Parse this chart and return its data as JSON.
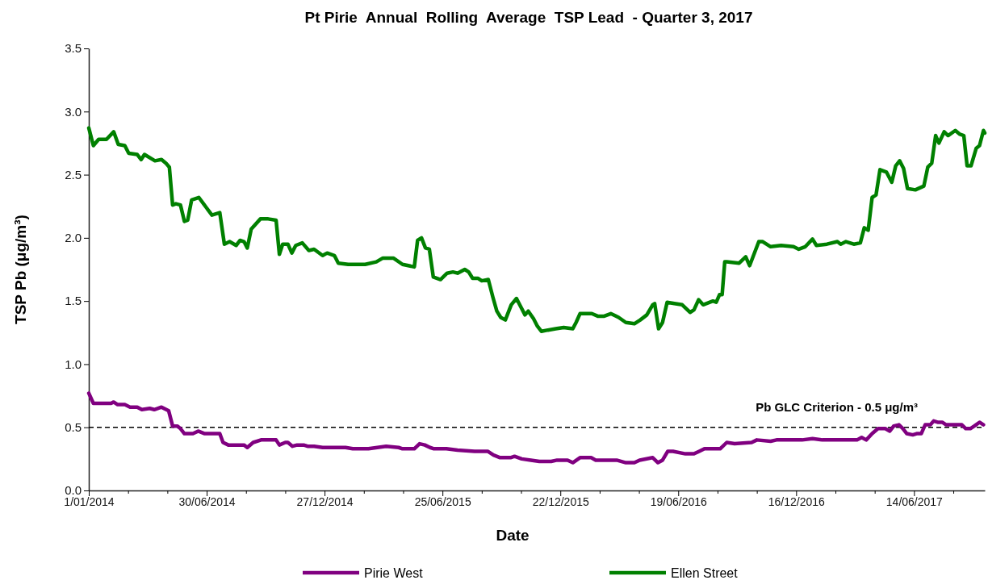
{
  "chart_data": {
    "type": "line",
    "title": "Pt Pirie  Annual  Rolling  Average  TSP Lead  - Quarter 3, 2017",
    "xlabel": "Date",
    "ylabel": "TSP Pb (μg/m³)",
    "xlim": [
      "2014-01-01",
      "2017-09-30"
    ],
    "xticks": [
      {
        "value": "2014-01-01",
        "label": "1/01/2014"
      },
      {
        "value": "2014-03-02",
        "label": null
      },
      {
        "value": "2014-05-01",
        "label": null
      },
      {
        "value": "2014-06-30",
        "label": "30/06/2014"
      },
      {
        "value": "2014-08-29",
        "label": null
      },
      {
        "value": "2014-10-28",
        "label": null
      },
      {
        "value": "2014-12-27",
        "label": "27/12/2014"
      },
      {
        "value": "2015-02-25",
        "label": null
      },
      {
        "value": "2015-04-26",
        "label": null
      },
      {
        "value": "2015-06-25",
        "label": "25/06/2015"
      },
      {
        "value": "2015-08-24",
        "label": null
      },
      {
        "value": "2015-10-23",
        "label": null
      },
      {
        "value": "2015-12-22",
        "label": "22/12/2015"
      },
      {
        "value": "2016-02-20",
        "label": null
      },
      {
        "value": "2016-04-20",
        "label": null
      },
      {
        "value": "2016-06-19",
        "label": "19/06/2016"
      },
      {
        "value": "2016-08-18",
        "label": null
      },
      {
        "value": "2016-10-17",
        "label": null
      },
      {
        "value": "2016-12-16",
        "label": "16/12/2016"
      },
      {
        "value": "2017-02-14",
        "label": null
      },
      {
        "value": "2017-04-15",
        "label": null
      },
      {
        "value": "2017-06-14",
        "label": "14/06/2017"
      },
      {
        "value": "2017-08-13",
        "label": null
      }
    ],
    "ylim": [
      0,
      3.5
    ],
    "yticks": [
      {
        "value": 0,
        "label": "0.0"
      },
      {
        "value": 0.5,
        "label": "0.5"
      },
      {
        "value": 1,
        "label": "1.0"
      },
      {
        "value": 1.5,
        "label": "1.5"
      },
      {
        "value": 2,
        "label": "2.0"
      },
      {
        "value": 2.5,
        "label": "2.5"
      },
      {
        "value": 3,
        "label": "3.0"
      },
      {
        "value": 3.5,
        "label": "3.5"
      }
    ],
    "grid": false,
    "legend": "bottom",
    "marker": "none",
    "line_style": "solid",
    "ref_lines": [
      {
        "axis": "y",
        "value": 0.5,
        "label": "Pb GLC Criterion  - 0.5 μg/m³",
        "color": "#000000",
        "line_style": "dashed"
      }
    ],
    "series": [
      {
        "name": "Pirie West",
        "color": "#800080",
        "x": [
          "2014-01-01",
          "2014-01-08",
          "2014-02-04",
          "2014-02-08",
          "2014-02-14",
          "2014-02-25",
          "2014-03-05",
          "2014-03-16",
          "2014-03-23",
          "2014-04-04",
          "2014-04-11",
          "2014-04-22",
          "2014-05-03",
          "2014-05-09",
          "2014-05-16",
          "2014-05-21",
          "2014-05-27",
          "2014-06-09",
          "2014-06-17",
          "2014-06-27",
          "2014-07-20",
          "2014-07-25",
          "2014-08-02",
          "2014-08-26",
          "2014-08-31",
          "2014-09-09",
          "2014-09-21",
          "2014-10-14",
          "2014-10-19",
          "2014-10-28",
          "2014-11-01",
          "2014-11-08",
          "2014-11-15",
          "2014-11-25",
          "2014-12-01",
          "2014-12-11",
          "2014-12-24",
          "2015-01-28",
          "2015-02-08",
          "2015-03-04",
          "2015-03-31",
          "2015-04-19",
          "2015-04-25",
          "2015-05-13",
          "2015-05-21",
          "2015-05-29",
          "2015-06-06",
          "2015-06-12",
          "2015-07-01",
          "2015-07-18",
          "2015-08-13",
          "2015-09-02",
          "2015-09-11",
          "2015-09-21",
          "2015-10-07",
          "2015-10-13",
          "2015-10-24",
          "2015-11-07",
          "2015-11-20",
          "2015-12-08",
          "2015-12-17",
          "2016-01-02",
          "2016-01-10",
          "2016-01-21",
          "2016-02-07",
          "2016-02-14",
          "2016-03-17",
          "2016-03-31",
          "2016-04-13",
          "2016-04-21",
          "2016-05-11",
          "2016-05-19",
          "2016-05-26",
          "2016-06-03",
          "2016-06-11",
          "2016-06-30",
          "2016-07-13",
          "2016-07-21",
          "2016-07-29",
          "2016-08-22",
          "2016-09-01",
          "2016-09-13",
          "2016-10-09",
          "2016-10-17",
          "2016-11-07",
          "2016-11-16",
          "2016-12-13",
          "2016-12-25",
          "2017-01-10",
          "2017-01-25",
          "2017-03-19",
          "2017-03-26",
          "2017-04-02",
          "2017-04-11",
          "2017-04-20",
          "2017-05-01",
          "2017-05-08",
          "2017-05-14",
          "2017-05-22",
          "2017-05-28",
          "2017-06-03",
          "2017-06-12",
          "2017-06-18",
          "2017-06-25",
          "2017-07-01",
          "2017-07-09",
          "2017-07-14",
          "2017-07-20",
          "2017-07-27",
          "2017-08-02",
          "2017-08-13",
          "2017-08-26",
          "2017-09-01",
          "2017-09-08",
          "2017-09-14",
          "2017-09-22",
          "2017-09-28"
        ],
        "values": [
          0.77,
          0.69,
          0.69,
          0.7,
          0.68,
          0.68,
          0.66,
          0.66,
          0.64,
          0.65,
          0.64,
          0.66,
          0.63,
          0.51,
          0.51,
          0.49,
          0.45,
          0.45,
          0.47,
          0.45,
          0.45,
          0.38,
          0.36,
          0.36,
          0.34,
          0.38,
          0.4,
          0.4,
          0.36,
          0.38,
          0.38,
          0.35,
          0.36,
          0.36,
          0.35,
          0.35,
          0.34,
          0.34,
          0.33,
          0.33,
          0.35,
          0.34,
          0.33,
          0.33,
          0.37,
          0.36,
          0.34,
          0.33,
          0.33,
          0.32,
          0.31,
          0.31,
          0.28,
          0.26,
          0.26,
          0.27,
          0.25,
          0.24,
          0.23,
          0.23,
          0.24,
          0.24,
          0.22,
          0.26,
          0.26,
          0.24,
          0.24,
          0.22,
          0.22,
          0.24,
          0.26,
          0.22,
          0.24,
          0.31,
          0.31,
          0.29,
          0.29,
          0.31,
          0.33,
          0.33,
          0.38,
          0.37,
          0.38,
          0.4,
          0.39,
          0.4,
          0.4,
          0.4,
          0.41,
          0.4,
          0.4,
          0.42,
          0.4,
          0.45,
          0.49,
          0.49,
          0.47,
          0.51,
          0.52,
          0.49,
          0.45,
          0.44,
          0.45,
          0.45,
          0.52,
          0.52,
          0.55,
          0.54,
          0.54,
          0.52,
          0.52,
          0.52,
          0.49,
          0.49,
          0.51,
          0.54,
          0.52
        ]
      },
      {
        "name": "Ellen Street",
        "color": "#008000",
        "x": [
          "2014-01-01",
          "2014-01-08",
          "2014-01-16",
          "2014-01-28",
          "2014-02-08",
          "2014-02-15",
          "2014-02-25",
          "2014-03-03",
          "2014-03-16",
          "2014-03-22",
          "2014-03-27",
          "2014-04-12",
          "2014-04-22",
          "2014-04-29",
          "2014-05-04",
          "2014-05-09",
          "2014-05-14",
          "2014-05-21",
          "2014-05-27",
          "2014-06-01",
          "2014-06-07",
          "2014-06-18",
          "2014-06-28",
          "2014-07-08",
          "2014-07-20",
          "2014-07-27",
          "2014-08-04",
          "2014-08-14",
          "2014-08-20",
          "2014-08-26",
          "2014-08-31",
          "2014-09-06",
          "2014-09-20",
          "2014-10-02",
          "2014-10-14",
          "2014-10-19",
          "2014-10-24",
          "2014-11-01",
          "2014-11-07",
          "2014-11-13",
          "2014-11-23",
          "2014-12-03",
          "2014-12-11",
          "2014-12-24",
          "2014-12-31",
          "2015-01-11",
          "2015-01-17",
          "2015-02-01",
          "2015-02-11",
          "2015-02-27",
          "2015-03-16",
          "2015-03-26",
          "2015-04-11",
          "2015-04-25",
          "2015-05-13",
          "2015-05-18",
          "2015-05-24",
          "2015-05-30",
          "2015-06-05",
          "2015-06-11",
          "2015-06-22",
          "2015-07-02",
          "2015-07-11",
          "2015-07-18",
          "2015-07-29",
          "2015-08-04",
          "2015-08-10",
          "2015-08-18",
          "2015-08-24",
          "2015-09-03",
          "2015-09-10",
          "2015-09-16",
          "2015-09-22",
          "2015-09-29",
          "2015-10-08",
          "2015-10-16",
          "2015-10-23",
          "2015-10-29",
          "2015-11-03",
          "2015-11-11",
          "2015-11-17",
          "2015-11-23",
          "2015-12-03",
          "2015-12-15",
          "2015-12-27",
          "2016-01-10",
          "2016-01-15",
          "2016-01-21",
          "2016-02-08",
          "2016-02-17",
          "2016-02-27",
          "2016-03-08",
          "2016-03-20",
          "2016-03-31",
          "2016-04-13",
          "2016-04-22",
          "2016-05-02",
          "2016-05-11",
          "2016-05-14",
          "2016-05-20",
          "2016-05-26",
          "2016-06-02",
          "2016-06-13",
          "2016-06-25",
          "2016-07-07",
          "2016-07-13",
          "2016-07-20",
          "2016-07-27",
          "2016-08-11",
          "2016-08-16",
          "2016-08-21",
          "2016-08-25",
          "2016-08-29",
          "2016-09-01",
          "2016-09-20",
          "2016-09-30",
          "2016-10-06",
          "2016-10-20",
          "2016-10-26",
          "2016-11-07",
          "2016-11-23",
          "2016-12-12",
          "2016-12-20",
          "2016-12-30",
          "2017-01-10",
          "2017-01-16",
          "2017-02-01",
          "2017-02-17",
          "2017-02-22",
          "2017-03-02",
          "2017-03-14",
          "2017-03-24",
          "2017-03-30",
          "2017-04-05",
          "2017-04-11",
          "2017-04-17",
          "2017-04-23",
          "2017-05-03",
          "2017-05-11",
          "2017-05-17",
          "2017-05-23",
          "2017-05-29",
          "2017-06-04",
          "2017-06-16",
          "2017-06-29",
          "2017-07-05",
          "2017-07-11",
          "2017-07-17",
          "2017-07-22",
          "2017-07-30",
          "2017-08-05",
          "2017-08-16",
          "2017-08-23",
          "2017-08-29",
          "2017-09-03",
          "2017-09-09",
          "2017-09-17",
          "2017-09-22",
          "2017-09-28",
          "2017-09-30"
        ],
        "values": [
          2.87,
          2.73,
          2.78,
          2.78,
          2.84,
          2.74,
          2.73,
          2.67,
          2.66,
          2.62,
          2.66,
          2.61,
          2.62,
          2.59,
          2.56,
          2.26,
          2.27,
          2.26,
          2.13,
          2.14,
          2.3,
          2.32,
          2.25,
          2.18,
          2.2,
          1.95,
          1.97,
          1.94,
          1.98,
          1.97,
          1.92,
          2.07,
          2.15,
          2.15,
          2.14,
          1.87,
          1.95,
          1.95,
          1.88,
          1.94,
          1.96,
          1.9,
          1.91,
          1.86,
          1.88,
          1.86,
          1.8,
          1.79,
          1.79,
          1.79,
          1.81,
          1.84,
          1.84,
          1.79,
          1.77,
          1.98,
          2.0,
          1.92,
          1.91,
          1.69,
          1.67,
          1.72,
          1.73,
          1.72,
          1.75,
          1.73,
          1.68,
          1.68,
          1.66,
          1.67,
          1.53,
          1.42,
          1.37,
          1.35,
          1.47,
          1.52,
          1.45,
          1.39,
          1.42,
          1.36,
          1.3,
          1.26,
          1.27,
          1.28,
          1.29,
          1.28,
          1.33,
          1.4,
          1.4,
          1.38,
          1.38,
          1.4,
          1.37,
          1.33,
          1.32,
          1.35,
          1.39,
          1.47,
          1.48,
          1.28,
          1.33,
          1.49,
          1.48,
          1.47,
          1.41,
          1.43,
          1.51,
          1.47,
          1.5,
          1.49,
          1.55,
          1.55,
          1.81,
          1.81,
          1.8,
          1.85,
          1.78,
          1.97,
          1.97,
          1.93,
          1.94,
          1.93,
          1.91,
          1.93,
          1.99,
          1.94,
          1.95,
          1.97,
          1.95,
          1.97,
          1.95,
          1.96,
          2.08,
          2.06,
          2.32,
          2.34,
          2.54,
          2.52,
          2.44,
          2.57,
          2.61,
          2.55,
          2.39,
          2.38,
          2.41,
          2.56,
          2.59,
          2.81,
          2.75,
          2.84,
          2.81,
          2.85,
          2.82,
          2.81,
          2.57,
          2.57,
          2.71,
          2.73,
          2.85,
          2.83
        ]
      }
    ]
  }
}
